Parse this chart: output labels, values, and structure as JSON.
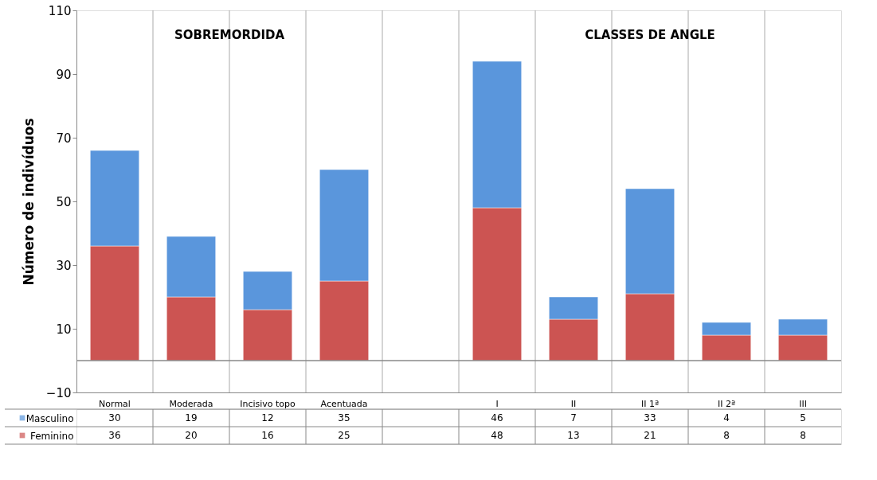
{
  "chart_data": {
    "type": "bar",
    "stacked": true,
    "ylabel": "Número de indivíduos",
    "categories": [
      "Normal",
      "Moderada",
      "Incisivo topo",
      "Acentuada",
      null,
      "I",
      "II",
      "II 1ª",
      "II 2ª",
      "III"
    ],
    "series": [
      {
        "name": "Feminino",
        "color": "#cc5452",
        "values": [
          36,
          20,
          16,
          25,
          null,
          48,
          13,
          21,
          8,
          8
        ]
      },
      {
        "name": "Masculino",
        "color": "#5a96dc",
        "values": [
          30,
          19,
          12,
          35,
          null,
          46,
          7,
          33,
          4,
          5
        ]
      }
    ],
    "ylim": [
      -10,
      110
    ],
    "yticks": [
      -10,
      10,
      30,
      50,
      70,
      90,
      110
    ],
    "grid": "x",
    "legend": "bottom",
    "data_labels": true,
    "ref_lines": [
      {
        "axis": "y",
        "value": 0
      }
    ],
    "annotations": [
      "SOBREMORDIDA",
      "CLASSES DE ANGLE"
    ]
  }
}
